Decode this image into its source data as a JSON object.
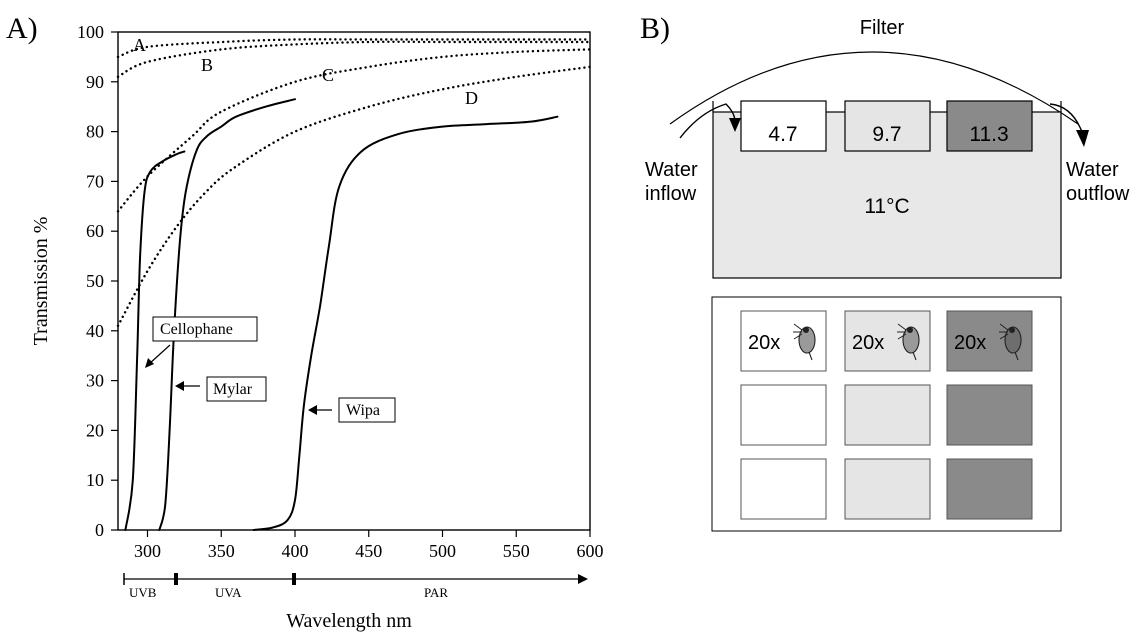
{
  "panel_a": {
    "label": "A)",
    "ylabel": "Transmission %",
    "xlabel": "Wavelength nm",
    "bands": [
      "UVB",
      "UVA",
      "PAR"
    ],
    "curve_labels": [
      {
        "letter": "A"
      },
      {
        "letter": "B"
      },
      {
        "letter": "C"
      },
      {
        "letter": "D"
      }
    ],
    "callouts": [
      "Cellophane",
      "Mylar",
      "Wipa"
    ]
  },
  "panel_b": {
    "label": "B)",
    "filter_label": "Filter",
    "water_inflow": [
      "Water",
      "inflow"
    ],
    "water_outflow": [
      "Water",
      "outflow"
    ],
    "tank_temperature": "11°C",
    "temperatures": [
      "4.7",
      "9.7",
      "11.3"
    ],
    "jar_count_label": "20x",
    "colors": {
      "white": "#ffffff",
      "light": "#e5e5e5",
      "dark": "#8a8a8a",
      "tank": "#e8e8e8"
    }
  },
  "chart_data": {
    "type": "line",
    "xlabel": "Wavelength nm",
    "ylabel": "Transmission %",
    "xlim": [
      280,
      600
    ],
    "ylim": [
      0,
      100
    ],
    "xticks": [
      300,
      350,
      400,
      450,
      500,
      550,
      600
    ],
    "yticks": [
      0,
      10,
      20,
      30,
      40,
      50,
      60,
      70,
      80,
      90,
      100
    ],
    "series": [
      {
        "name": "A",
        "style": "dotted",
        "x": [
          280,
          300,
          350,
          400,
          450,
          500,
          550,
          600
        ],
        "y": [
          95,
          97,
          98,
          98.5,
          98.5,
          98.5,
          98.5,
          98.5
        ]
      },
      {
        "name": "B",
        "style": "dotted",
        "x": [
          280,
          300,
          350,
          400,
          450,
          500,
          550,
          600
        ],
        "y": [
          91,
          94,
          96.5,
          97.5,
          98,
          98,
          98,
          98
        ]
      },
      {
        "name": "C",
        "style": "dotted",
        "x": [
          280,
          300,
          330,
          350,
          400,
          450,
          500,
          550,
          600
        ],
        "y": [
          64,
          71,
          79,
          84,
          90,
          93,
          95,
          96,
          96.5
        ]
      },
      {
        "name": "D",
        "style": "dotted",
        "x": [
          280,
          300,
          320,
          340,
          360,
          400,
          450,
          500,
          550,
          600
        ],
        "y": [
          41,
          52,
          61,
          68,
          73,
          80,
          85,
          88.5,
          91,
          93
        ]
      },
      {
        "name": "Cellophane",
        "style": "solid",
        "x": [
          285,
          290,
          293,
          295,
          298,
          302,
          310,
          320,
          325
        ],
        "y": [
          0,
          10,
          35,
          55,
          68,
          72,
          74,
          75.5,
          76
        ]
      },
      {
        "name": "Mylar",
        "style": "solid",
        "x": [
          308,
          312,
          315,
          318,
          322,
          326,
          333,
          340,
          350,
          360,
          380,
          400
        ],
        "y": [
          0,
          5,
          20,
          40,
          58,
          68,
          76,
          79,
          81,
          83,
          85,
          86.5
        ]
      },
      {
        "name": "Wipa",
        "style": "solid",
        "x": [
          372,
          385,
          395,
          400,
          403,
          406,
          411,
          417,
          423,
          430,
          445,
          470,
          500,
          530,
          560,
          578
        ],
        "y": [
          0,
          0.5,
          2,
          6,
          15,
          25,
          35,
          45,
          57,
          69,
          76,
          79.5,
          81,
          81.5,
          82,
          83
        ]
      }
    ],
    "annotations": [
      {
        "text": "Cellophane",
        "points_to": [
          296,
          32
        ]
      },
      {
        "text": "Mylar",
        "points_to": [
          319,
          29
        ]
      },
      {
        "text": "Wipa",
        "points_to": [
          404,
          24
        ]
      }
    ],
    "grid": false,
    "legend": "none"
  }
}
